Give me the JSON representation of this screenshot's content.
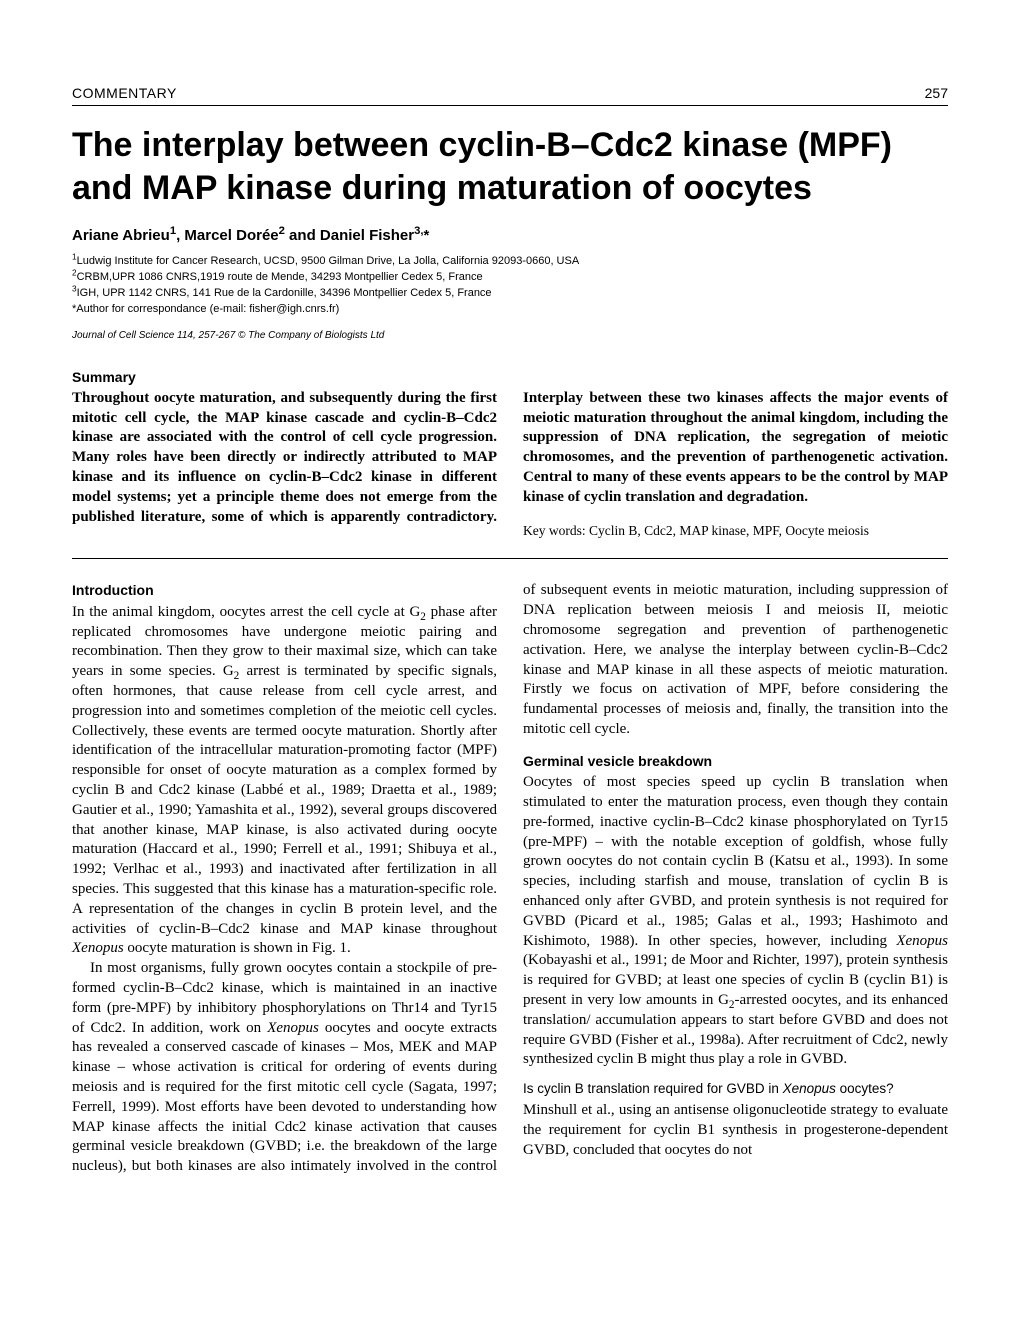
{
  "header": {
    "section_label": "COMMENTARY",
    "page_number": "257"
  },
  "title": "The interplay between cyclin-B–Cdc2 kinase (MPF) and MAP kinase during maturation of oocytes",
  "authors_html": "Ariane Abrieu<sup>1</sup>, Marcel Dorée<sup>2</sup> and Daniel Fisher<sup>3,</sup>*",
  "affiliations": [
    "<sup>1</sup>Ludwig Institute for Cancer Research, UCSD, 9500 Gilman Drive, La Jolla, California 92093-0660, USA",
    "<sup>2</sup>CRBM,UPR 1086 CNRS,1919 route de Mende, 34293 Montpellier Cedex 5, France",
    "<sup>3</sup>IGH, UPR 1142 CNRS, 141 Rue de la Cardonille, 34396 Montpellier Cedex 5, France",
    "*Author for correspondance (e-mail: fisher@igh.cnrs.fr)"
  ],
  "journal_line": "Journal of Cell Science 114, 257-267 © The Company of Biologists Ltd",
  "summary": {
    "label": "Summary",
    "text": "Throughout oocyte maturation, and subsequently during the first mitotic cell cycle, the MAP kinase cascade and cyclin-B–Cdc2 kinase are associated with the control of cell cycle progression. Many roles have been directly or indirectly attributed to MAP kinase and its influence on cyclin-B–Cdc2 kinase in different model systems; yet a principle theme does not emerge from the published literature, some of which is apparently contradictory. Interplay between these two kinases affects the major events of meiotic maturation throughout the animal kingdom, including the suppression of DNA replication, the segregation of meiotic chromosomes, and the prevention of parthenogenetic activation. Central to many of these events appears to be the control by MAP kinase of cyclin translation and degradation.",
    "keywords": "Key words: Cyclin B, Cdc2, MAP kinase, MPF, Oocyte meiosis"
  },
  "body": {
    "intro_heading": "Introduction",
    "intro_p1_html": "In the animal kingdom, oocytes arrest the cell cycle at G<sub>2</sub> phase after replicated chromosomes have undergone meiotic pairing and recombination. Then they grow to their maximal size, which can take years in some species. G<sub>2</sub> arrest is terminated by specific signals, often hormones, that cause release from cell cycle arrest, and progression into and sometimes completion of the meiotic cell cycles. Collectively, these events are termed oocyte maturation. Shortly after identification of the intracellular maturation-promoting factor (MPF) responsible for onset of oocyte maturation as a complex formed by cyclin B and Cdc2 kinase (Labbé et al., 1989; Draetta et al., 1989; Gautier et al., 1990; Yamashita et al., 1992), several groups discovered that another kinase, MAP kinase, is also activated during oocyte maturation (Haccard et al., 1990; Ferrell et al., 1991; Shibuya et al., 1992; Verlhac et al., 1993) and inactivated after fertilization in all species. This suggested that this kinase has a maturation-specific role. A representation of the changes in cyclin B protein level, and the activities of cyclin-B–Cdc2 kinase and MAP kinase throughout <span class=\"italic\">Xenopus</span> oocyte maturation is shown in Fig. 1.",
    "intro_p2_html": "In most organisms, fully grown oocytes contain a stockpile of pre-formed cyclin-B–Cdc2 kinase, which is maintained in an inactive form (pre-MPF) by inhibitory phosphorylations on Thr14 and Tyr15 of Cdc2. In addition, work on <span class=\"italic\">Xenopus</span> oocytes and oocyte extracts has revealed a conserved cascade of kinases – Mos, MEK and MAP kinase – whose activation is critical for ordering of events during meiosis and is required for the first mitotic cell cycle (Sagata, 1997; Ferrell, 1999). Most efforts have been devoted to understanding how MAP kinase affects the initial Cdc2 kinase activation that causes germinal vesicle breakdown (GVBD; i.e. the breakdown of the large nucleus), but both kinases are also intimately involved in the control of subsequent events in meiotic maturation, including suppression of DNA replication between meiosis I and meiosis II, meiotic chromosome segregation and prevention of parthenogenetic activation. Here, we analyse the interplay between cyclin-B–Cdc2 kinase and MAP kinase in all these aspects of meiotic maturation. Firstly we focus on activation of MPF, before considering the fundamental processes of meiosis and, finally, the transition into the mitotic cell cycle.",
    "gvbd_heading": "Germinal vesicle breakdown",
    "gvbd_p1_html": "Oocytes of most species speed up cyclin B translation when stimulated to enter the maturation process, even though they contain pre-formed, inactive cyclin-B–Cdc2 kinase phosphorylated on Tyr15 (pre-MPF) – with the notable exception of goldfish, whose fully grown oocytes do not contain cyclin B (Katsu et al., 1993). In some species, including starfish and mouse, translation of cyclin B is enhanced only after GVBD, and protein synthesis is not required for GVBD (Picard et al., 1985; Galas et al., 1993; Hashimoto and Kishimoto, 1988). In other species, however, including <span class=\"italic\">Xenopus</span> (Kobayashi et al., 1991; de Moor and Richter, 1997), protein synthesis is required for GVBD; at least one species of cyclin B (cyclin B1) is present in very low amounts in G<sub>2</sub>-arrested oocytes, and its enhanced translation/ accumulation appears to start before GVBD and does not require GVBD (Fisher et al., 1998a). After recruitment of Cdc2, newly synthesized cyclin B might thus play a role in GVBD.",
    "sub_heading_html": "Is cyclin B translation required for GVBD in <span class=\"italic\">Xenopus</span> oocytes?",
    "sub_p1_html": "Minshull et al., using an antisense oligonucleotide strategy to evaluate the requirement for cyclin B1 synthesis in progesterone-dependent GVBD, concluded that oocytes do not"
  }
}
